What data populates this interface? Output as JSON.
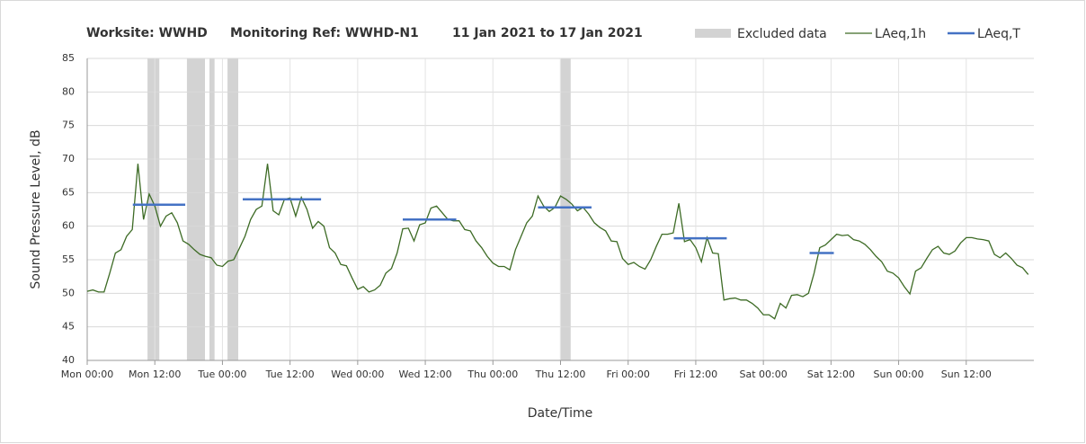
{
  "chart_data": {
    "type": "line",
    "title_parts": [
      "Worksite: WWHD",
      "Monitoring Ref: WWHD-N1",
      "11 Jan 2021 to 17 Jan 2021"
    ],
    "y_label": "Sound Pressure Level, dB",
    "x_label": "Date/Time",
    "xlim": [
      0,
      168
    ],
    "xticks": [
      {
        "value": 0,
        "label": "Mon 00:00"
      },
      {
        "value": 12,
        "label": "Mon 12:00"
      },
      {
        "value": 24,
        "label": "Tue 00:00"
      },
      {
        "value": 36,
        "label": "Tue 12:00"
      },
      {
        "value": 48,
        "label": "Wed 00:00"
      },
      {
        "value": 60,
        "label": "Wed 12:00"
      },
      {
        "value": 72,
        "label": "Thu 00:00"
      },
      {
        "value": 84,
        "label": "Thu 12:00"
      },
      {
        "value": 96,
        "label": "Fri 00:00"
      },
      {
        "value": 108,
        "label": "Fri 12:00"
      },
      {
        "value": 120,
        "label": "Sat 00:00"
      },
      {
        "value": 132,
        "label": "Sat 12:00"
      },
      {
        "value": 144,
        "label": "Sun 00:00"
      },
      {
        "value": 156,
        "label": "Sun 12:00"
      }
    ],
    "ylim": [
      40,
      85
    ],
    "yticks": [
      40,
      45,
      50,
      55,
      60,
      65,
      70,
      75,
      80,
      85
    ],
    "grid": true,
    "excluded": {
      "name": "Excluded data",
      "color": "#d3d3d3",
      "spans": [
        [
          10.7,
          12.8
        ],
        [
          17.7,
          20.9
        ],
        [
          21.7,
          22.6
        ],
        [
          24.9,
          26.8
        ],
        [
          83.9,
          85.8
        ]
      ]
    },
    "series": [
      {
        "name": "LAeq,1h",
        "color": "#3d6b25",
        "x": [
          0,
          1,
          2,
          3,
          4,
          5,
          6,
          7,
          8,
          9,
          10,
          11,
          12,
          13,
          14,
          15,
          16,
          17,
          18,
          19,
          20,
          21,
          22,
          23,
          24,
          25,
          26,
          27,
          28,
          29,
          30,
          31,
          32,
          33,
          34,
          35,
          36,
          37,
          38,
          39,
          40,
          41,
          42,
          43,
          44,
          45,
          46,
          47,
          48,
          49,
          50,
          51,
          52,
          53,
          54,
          55,
          56,
          57,
          58,
          59,
          60,
          61,
          62,
          63,
          64,
          65,
          66,
          67,
          68,
          69,
          70,
          71,
          72,
          73,
          74,
          75,
          76,
          77,
          78,
          79,
          80,
          81,
          82,
          83,
          84,
          85,
          86,
          87,
          88,
          89,
          90,
          91,
          92,
          93,
          94,
          95,
          96,
          97,
          98,
          99,
          100,
          101,
          102,
          103,
          104,
          105,
          106,
          107,
          108,
          109,
          110,
          111,
          112,
          113,
          114,
          115,
          116,
          117,
          118,
          119,
          120,
          121,
          122,
          123,
          124,
          125,
          126,
          127,
          128,
          129,
          130,
          131,
          132,
          133,
          134,
          135,
          136,
          137,
          138,
          139,
          140,
          141,
          142,
          143,
          144,
          145,
          146,
          147,
          148,
          149,
          150,
          151,
          152,
          153,
          154,
          155,
          156,
          157,
          158,
          159,
          160,
          161,
          162,
          163,
          164,
          165,
          166,
          167
        ],
        "values": [
          50.3,
          50.5,
          50.2,
          50.2,
          53,
          56,
          56.5,
          58.5,
          59.5,
          69.3,
          61,
          64.8,
          63,
          60,
          61.5,
          62,
          60.5,
          57.8,
          57.3,
          56.5,
          55.8,
          55.5,
          55.3,
          54.2,
          54,
          54.8,
          55,
          56.7,
          58.5,
          61,
          62.5,
          63,
          69.3,
          62.3,
          61.7,
          64,
          64.2,
          61.5,
          64.3,
          62.5,
          59.7,
          60.7,
          60,
          56.8,
          56,
          54.3,
          54.1,
          52.3,
          50.6,
          51,
          50.2,
          50.5,
          51.2,
          53,
          53.7,
          56,
          59.6,
          59.7,
          57.8,
          60.2,
          60.5,
          62.7,
          63,
          62,
          61,
          60.8,
          60.8,
          59.5,
          59.3,
          57.8,
          56.8,
          55.5,
          54.5,
          54,
          54,
          53.5,
          56.5,
          58.5,
          60.5,
          61.5,
          64.5,
          63,
          62.2,
          62.8,
          64.5,
          64,
          63.3,
          62.3,
          62.8,
          61.8,
          60.5,
          59.8,
          59.3,
          57.8,
          57.7,
          55.2,
          54.3,
          54.6,
          54,
          53.6,
          55,
          57,
          58.8,
          58.8,
          59,
          63.4,
          57.7,
          58,
          56.8,
          54.7,
          58.3,
          56,
          55.9,
          49,
          49.2,
          49.3,
          49,
          49,
          48.5,
          47.8,
          46.8,
          46.8,
          46.2,
          48.5,
          47.8,
          49.7,
          49.8,
          49.5,
          50,
          53,
          56.8,
          57.2,
          58,
          58.8,
          58.6,
          58.7,
          58,
          57.8,
          57.3,
          56.5,
          55.5,
          54.7,
          53.3,
          53,
          52.3,
          51,
          49.9,
          53.3,
          53.8,
          55.2,
          56.5,
          57,
          56,
          55.8,
          56.3,
          57.5,
          58.3,
          58.3,
          58.1,
          58,
          57.8,
          55.8,
          55.3,
          56,
          55.2,
          54.2,
          53.8,
          52.8
        ]
      },
      {
        "name": "LAeq,T",
        "color": "#4472c4",
        "segments": [
          {
            "x": [
              8.1,
              17.4
            ],
            "value": 63.2
          },
          {
            "x": [
              27.6,
              41.5
            ],
            "value": 64
          },
          {
            "x": [
              56,
              65.5
            ],
            "value": 61
          },
          {
            "x": [
              80,
              89.5
            ],
            "value": 62.8
          },
          {
            "x": [
              104.1,
              113.5
            ],
            "value": 58.2
          },
          {
            "x": [
              128.2,
              132.5
            ],
            "value": 56
          }
        ]
      }
    ]
  }
}
